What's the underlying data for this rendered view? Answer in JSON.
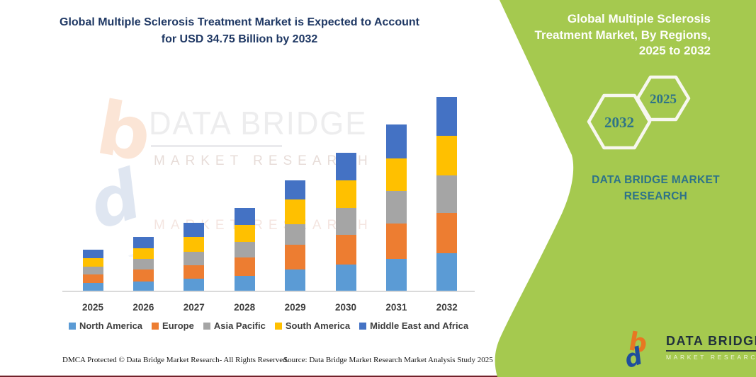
{
  "main": {
    "title": "Global Multiple Sclerosis Treatment Market is Expected to Account for USD 34.75 Billion by 2032",
    "footer": {
      "dmca": "DMCA Protected © Data Bridge Market Research-  All Rights Reserved.",
      "source": "Source: Data Bridge Market Research  Market Analysis Study 2025"
    },
    "colors": {
      "title_navy": "#1F3864",
      "bottom_accent_line": "#71222A"
    }
  },
  "watermark": {
    "name": "DATA BRIDGE",
    "subtitle": "MARKET RESEARCH"
  },
  "chart_data": {
    "type": "bar",
    "stacked": true,
    "title": "Global Multiple Sclerosis Treatment Market is Expected to Account for USD 34.75 Billion by 2032",
    "unit": "USD Billion",
    "categories": [
      "2025",
      "2026",
      "2027",
      "2028",
      "2029",
      "2030",
      "2031",
      "2032"
    ],
    "series": [
      {
        "name": "North America",
        "color": "#5B9BD5",
        "values": [
          1.5,
          1.8,
          2.3,
          2.8,
          3.9,
          4.8,
          5.8,
          6.8
        ]
      },
      {
        "name": "Europe",
        "color": "#ED7D31",
        "values": [
          1.6,
          2.1,
          2.4,
          3.3,
          4.4,
          5.3,
          6.3,
          7.2
        ]
      },
      {
        "name": "Asia Pacific",
        "color": "#A5A5A5",
        "values": [
          1.3,
          1.9,
          2.4,
          2.8,
          3.7,
          4.9,
          5.9,
          6.8
        ]
      },
      {
        "name": "South America",
        "color": "#FFC000",
        "values": [
          1.5,
          1.9,
          2.7,
          3.0,
          4.4,
          4.9,
          5.8,
          7.0
        ]
      },
      {
        "name": "Middle East and Africa",
        "color": "#4472C4",
        "values": [
          1.6,
          2.0,
          2.5,
          3.0,
          3.5,
          4.9,
          6.1,
          7.0
        ]
      }
    ],
    "totals_estimated": [
      7.5,
      9.7,
      12.3,
      14.9,
      19.9,
      24.8,
      29.9,
      34.75
    ],
    "highlight": "2032 total = USD 34.75 Billion",
    "xlabel": "",
    "ylabel": "",
    "ylim": [
      0,
      35
    ],
    "grid": false,
    "y_axis_shown": false,
    "legend_position": "bottom"
  },
  "side_panel": {
    "title": "Global Multiple Sclerosis Treatment Market, By Regions, 2025 to 2032",
    "hexagons": [
      {
        "label": "2032"
      },
      {
        "label": "2025"
      }
    ],
    "brand_caption": "DATA BRIDGE MARKET RESEARCH",
    "logo": {
      "name": "DATA BRIDGE",
      "subtitle": "MARKET RESEARCH"
    },
    "colors": {
      "panel_green": "#A5C94F",
      "teal_text": "#2E7388",
      "hexagon_border": "#F7F7EF",
      "logo_orange": "#E87722",
      "logo_blue": "#1F4E9C"
    }
  }
}
